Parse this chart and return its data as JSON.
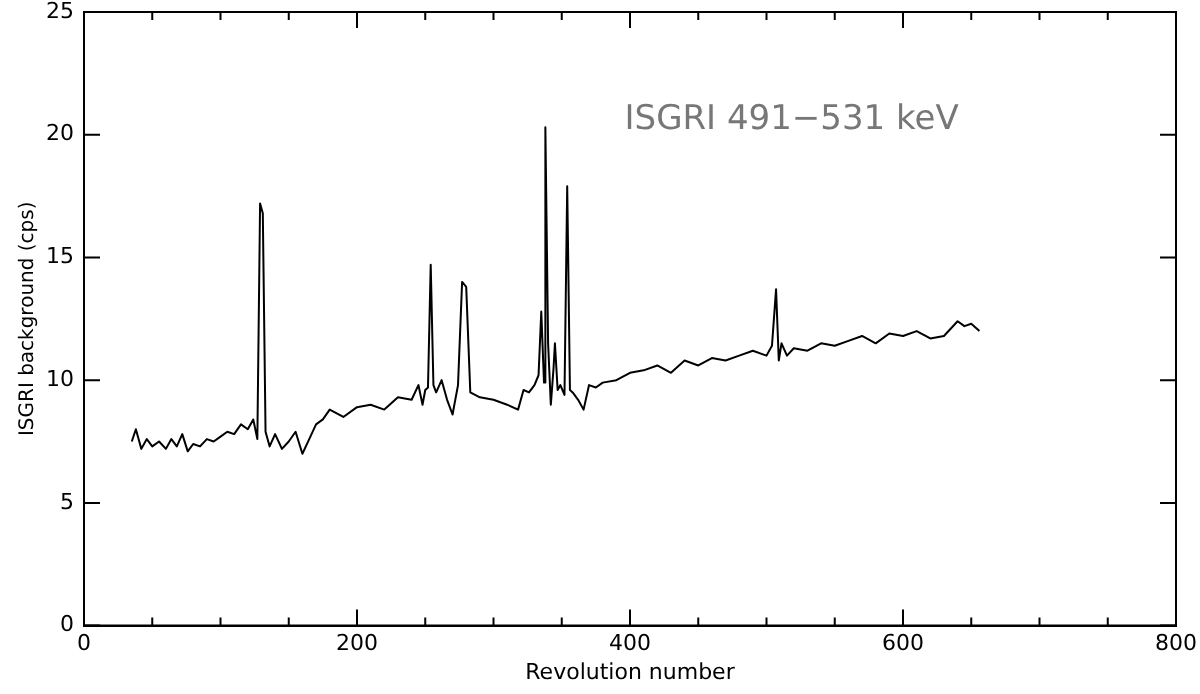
{
  "chart_data": {
    "type": "line",
    "xlabel": "Revolution number",
    "ylabel": "ISGRI background (cps)",
    "annotations": [
      "ISGRI 491−531 keV"
    ],
    "xlim": [
      0,
      800
    ],
    "ylim": [
      0,
      25
    ],
    "xticks": [
      0,
      {
        "value": 50,
        "label": null
      },
      200,
      {
        "value": 100,
        "label": null
      },
      {
        "value": 150,
        "label": null
      },
      {
        "value": 250,
        "label": null
      },
      {
        "value": 300,
        "label": null
      },
      {
        "value": 350,
        "label": null
      },
      400,
      {
        "value": 450,
        "label": null
      },
      {
        "value": 500,
        "label": null
      },
      {
        "value": 550,
        "label": null
      },
      600,
      {
        "value": 650,
        "label": null
      },
      {
        "value": 700,
        "label": null
      },
      {
        "value": 750,
        "label": null
      },
      800
    ],
    "yticks": [
      0,
      5,
      10,
      15,
      20,
      25
    ],
    "grid": false,
    "legend": false,
    "marker": "none",
    "line_style": "solid",
    "series": [
      {
        "color": "#000000",
        "x": [
          35,
          38,
          42,
          46,
          50,
          55,
          60,
          64,
          68,
          72,
          76,
          80,
          85,
          90,
          95,
          100,
          105,
          110,
          115,
          120,
          124,
          127,
          129,
          131,
          133,
          136,
          140,
          145,
          150,
          155,
          160,
          165,
          170,
          175,
          180,
          190,
          200,
          210,
          220,
          230,
          240,
          245,
          248,
          250,
          252,
          254,
          256,
          258,
          262,
          266,
          270,
          274,
          277,
          280,
          283,
          290,
          300,
          310,
          318,
          322,
          326,
          330,
          333,
          335,
          337,
          338,
          340,
          342,
          344,
          345,
          347,
          349,
          352,
          354,
          356,
          358,
          362,
          366,
          370,
          375,
          380,
          390,
          400,
          410,
          420,
          430,
          440,
          450,
          460,
          470,
          480,
          490,
          500,
          504,
          507,
          509,
          511,
          515,
          520,
          530,
          540,
          550,
          560,
          570,
          580,
          590,
          600,
          610,
          620,
          630,
          640,
          645,
          650,
          656
        ],
        "values": [
          7.5,
          8.0,
          7.2,
          7.6,
          7.3,
          7.5,
          7.2,
          7.6,
          7.3,
          7.8,
          7.1,
          7.4,
          7.3,
          7.6,
          7.5,
          7.7,
          7.9,
          7.8,
          8.2,
          8.0,
          8.4,
          7.6,
          17.2,
          16.8,
          7.9,
          7.3,
          7.8,
          7.2,
          7.5,
          7.9,
          7.0,
          7.6,
          8.2,
          8.4,
          8.8,
          8.5,
          8.9,
          9.0,
          8.8,
          9.3,
          9.2,
          9.8,
          9.0,
          9.6,
          9.7,
          14.7,
          9.8,
          9.5,
          10.0,
          9.2,
          8.6,
          9.8,
          14.0,
          13.8,
          9.5,
          9.3,
          9.2,
          9.0,
          8.8,
          9.6,
          9.5,
          9.8,
          10.2,
          12.8,
          9.9,
          20.3,
          11.5,
          9.0,
          10.5,
          11.5,
          9.6,
          9.8,
          9.4,
          17.9,
          9.6,
          9.5,
          9.2,
          8.8,
          9.8,
          9.7,
          9.9,
          10.0,
          10.3,
          10.4,
          10.6,
          10.3,
          10.8,
          10.6,
          10.9,
          10.8,
          11.0,
          11.2,
          11.0,
          11.4,
          13.7,
          10.8,
          11.5,
          11.0,
          11.3,
          11.2,
          11.5,
          11.4,
          11.6,
          11.8,
          11.5,
          11.9,
          11.8,
          12.0,
          11.7,
          11.8,
          12.4,
          12.2,
          12.3,
          12.0
        ]
      }
    ]
  }
}
